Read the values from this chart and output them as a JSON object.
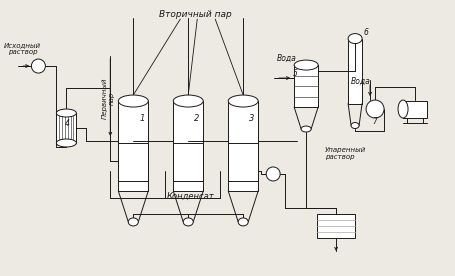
{
  "bg_color": "#ede9e3",
  "line_color": "#1a1a1a",
  "labels": {
    "vtorichny_par": "Вторичный пар",
    "pervichny_par": "Первичный\nпар",
    "ishodny": "Исходный\nраствор",
    "kondensат": "Конденсат",
    "voda1": "Вода",
    "voda2": "Вода",
    "uparenny": "Упаренный\nраствор",
    "n1": "1",
    "n2": "2",
    "n3": "3",
    "n4": "4",
    "n5": "5",
    "n6": "6",
    "n7": "7"
  },
  "figsize": [
    4.55,
    2.76
  ],
  "dpi": 100
}
